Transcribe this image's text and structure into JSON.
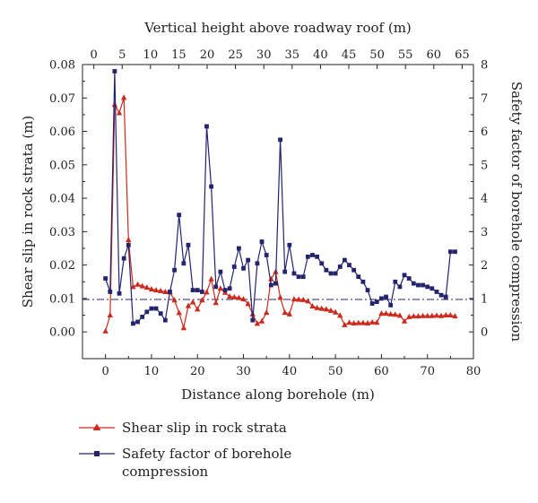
{
  "chart_data": {
    "type": "line",
    "title": "",
    "xlabel": "Distance along borehole (m)",
    "x2label": "Vertical height above roadway roof (m)",
    "ylabel": "Shear slip in rock strata (m)",
    "y2label": "Safety factor of borehole compression",
    "xlim": [
      -5,
      80
    ],
    "ylim": [
      -0.008,
      0.08
    ],
    "y2lim": [
      -0.8,
      8
    ],
    "x2lim": [
      -2,
      67
    ],
    "xticks": [
      "0",
      "10",
      "20",
      "30",
      "40",
      "50",
      "60",
      "70",
      "80"
    ],
    "x2ticks": [
      "0",
      "5",
      "10",
      "15",
      "20",
      "25",
      "30",
      "35",
      "40",
      "45",
      "50",
      "55",
      "60",
      "65"
    ],
    "yticks": [
      "0.00",
      "0.01",
      "0.02",
      "0.03",
      "0.04",
      "0.05",
      "0.06",
      "0.07",
      "0.08"
    ],
    "y2ticks": [
      "0",
      "1",
      "2",
      "3",
      "4",
      "5",
      "6",
      "7",
      "8"
    ],
    "grid": false,
    "legend_position": "bottom-left",
    "reference_lines": [
      {
        "axis": "y",
        "value": 0.0097,
        "color": "#cc2a1c",
        "style": "dash-dot"
      },
      {
        "axis": "y2",
        "value": 0.97,
        "color": "#24246e",
        "style": "dash-dot"
      }
    ],
    "series": [
      {
        "name": "Shear slip in rock strata",
        "axis": "left",
        "color": "#cc2a1c",
        "marker": "triangle",
        "x": [
          0,
          1,
          2,
          3,
          4,
          5,
          6,
          7,
          8,
          9,
          10,
          11,
          12,
          13,
          14,
          15,
          16,
          17,
          18,
          19,
          20,
          21,
          22,
          23,
          24,
          25,
          26,
          27,
          28,
          29,
          30,
          31,
          32,
          33,
          34,
          35,
          36,
          37,
          38,
          39,
          40,
          41,
          42,
          43,
          44,
          45,
          46,
          47,
          48,
          49,
          50,
          51,
          52,
          53,
          54,
          55,
          56,
          57,
          58,
          59,
          60,
          61,
          62,
          63,
          64,
          65,
          66,
          67,
          68,
          69,
          70,
          71,
          72,
          73,
          74,
          75,
          76
        ],
        "values": [
          0.0002,
          0.005,
          0.068,
          0.0655,
          0.0701,
          0.0275,
          0.0135,
          0.0142,
          0.0137,
          0.0133,
          0.0128,
          0.0125,
          0.0123,
          0.012,
          0.0119,
          0.0095,
          0.0057,
          0.0012,
          0.0078,
          0.0089,
          0.0068,
          0.0095,
          0.0119,
          0.0158,
          0.0087,
          0.013,
          0.0118,
          0.0106,
          0.0104,
          0.0102,
          0.0098,
          0.0084,
          0.0053,
          0.0025,
          0.0032,
          0.0058,
          0.0158,
          0.018,
          0.0103,
          0.0058,
          0.0053,
          0.0098,
          0.0097,
          0.0096,
          0.0092,
          0.0077,
          0.0072,
          0.007,
          0.0068,
          0.0064,
          0.0059,
          0.0049,
          0.0021,
          0.0028,
          0.0026,
          0.0027,
          0.0027,
          0.0026,
          0.0029,
          0.0028,
          0.0055,
          0.0055,
          0.0053,
          0.0052,
          0.0049,
          0.0032,
          0.0045,
          0.0047,
          0.0047,
          0.0048,
          0.0048,
          0.0048,
          0.0049,
          0.0048,
          0.005,
          0.005,
          0.0047
        ]
      },
      {
        "name": "Safety factor of borehole compression",
        "axis": "right",
        "color": "#24246e",
        "marker": "square",
        "x": [
          0,
          1,
          2,
          3,
          4,
          5,
          6,
          7,
          8,
          9,
          10,
          11,
          12,
          13,
          14,
          15,
          16,
          17,
          18,
          19,
          20,
          21,
          22,
          23,
          24,
          25,
          26,
          27,
          28,
          29,
          30,
          31,
          32,
          33,
          34,
          35,
          36,
          37,
          38,
          39,
          40,
          41,
          42,
          43,
          44,
          45,
          46,
          47,
          48,
          49,
          50,
          51,
          52,
          53,
          54,
          55,
          56,
          57,
          58,
          59,
          60,
          61,
          62,
          63,
          64,
          65,
          66,
          67,
          68,
          69,
          70,
          71,
          72,
          73,
          74,
          75,
          76
        ],
        "values": [
          1.6,
          1.2,
          7.8,
          1.15,
          2.2,
          2.6,
          0.25,
          0.3,
          0.45,
          0.6,
          0.7,
          0.7,
          0.55,
          0.35,
          1.2,
          1.85,
          3.5,
          2.05,
          2.6,
          1.25,
          1.25,
          1.2,
          6.15,
          4.35,
          1.35,
          1.8,
          1.25,
          1.3,
          1.95,
          2.5,
          1.9,
          2.15,
          0.35,
          2.05,
          2.7,
          2.3,
          1.4,
          1.45,
          5.75,
          1.8,
          2.6,
          1.75,
          1.65,
          1.65,
          2.25,
          2.3,
          2.25,
          2.05,
          1.85,
          1.75,
          1.75,
          1.95,
          2.15,
          2.0,
          1.85,
          1.65,
          1.5,
          1.25,
          0.85,
          0.9,
          1.0,
          1.05,
          0.8,
          1.5,
          1.35,
          1.7,
          1.6,
          1.45,
          1.4,
          1.4,
          1.35,
          1.3,
          1.2,
          1.1,
          1.05,
          2.4,
          2.4
        ]
      }
    ]
  }
}
